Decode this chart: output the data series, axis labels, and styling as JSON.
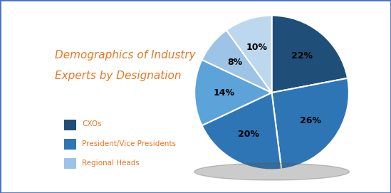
{
  "title_line1": "Demographics of Industry",
  "title_line2": "Experts by Designation",
  "title_color": "#E87722",
  "slices": [
    22,
    26,
    20,
    14,
    8,
    10
  ],
  "labels": [
    "22%",
    "26%",
    "20%",
    "14%",
    "8%",
    "10%"
  ],
  "colors": [
    "#1F4E79",
    "#2E75B6",
    "#2E75B6",
    "#5BA3D9",
    "#9DC3E6",
    "#BDD7EE"
  ],
  "startangle": 90,
  "legend_labels": [
    "CXOs",
    "President/Vice Presidents",
    "Regional Heads"
  ],
  "legend_colors": [
    "#1F4E79",
    "#2E75B6",
    "#9DC3E6"
  ],
  "background_color": "#FFFFFF",
  "border_color": "#4472C4"
}
